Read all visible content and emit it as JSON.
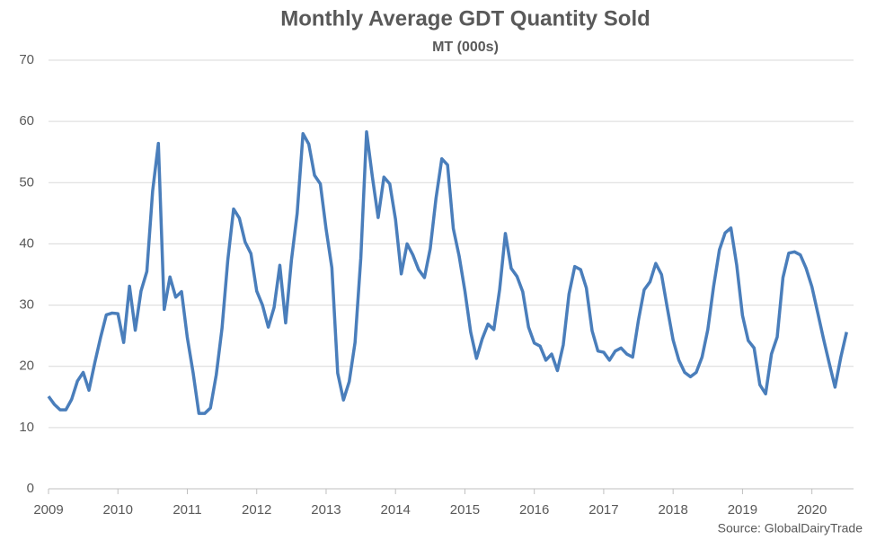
{
  "chart_data": {
    "type": "line",
    "title": "Monthly Average GDT Quantity Sold",
    "subtitle": "MT (000s)",
    "source": "Source: GlobalDairyTrade",
    "x": [
      2009,
      2009.083,
      2009.167,
      2009.25,
      2009.333,
      2009.417,
      2009.5,
      2009.583,
      2009.667,
      2009.75,
      2009.833,
      2009.917,
      2010,
      2010.083,
      2010.167,
      2010.25,
      2010.333,
      2010.417,
      2010.5,
      2010.583,
      2010.667,
      2010.75,
      2010.833,
      2010.917,
      2011,
      2011.083,
      2011.167,
      2011.25,
      2011.333,
      2011.417,
      2011.5,
      2011.583,
      2011.667,
      2011.75,
      2011.833,
      2011.917,
      2012,
      2012.083,
      2012.167,
      2012.25,
      2012.333,
      2012.417,
      2012.5,
      2012.583,
      2012.667,
      2012.75,
      2012.833,
      2012.917,
      2013,
      2013.083,
      2013.167,
      2013.25,
      2013.333,
      2013.417,
      2013.5,
      2013.583,
      2013.667,
      2013.75,
      2013.833,
      2013.917,
      2014,
      2014.083,
      2014.167,
      2014.25,
      2014.333,
      2014.417,
      2014.5,
      2014.583,
      2014.667,
      2014.75,
      2014.833,
      2014.917,
      2015,
      2015.083,
      2015.167,
      2015.25,
      2015.333,
      2015.417,
      2015.5,
      2015.583,
      2015.667,
      2015.75,
      2015.833,
      2015.917,
      2016,
      2016.083,
      2016.167,
      2016.25,
      2016.333,
      2016.417,
      2016.5,
      2016.583,
      2016.667,
      2016.75,
      2016.833,
      2016.917,
      2017,
      2017.083,
      2017.167,
      2017.25,
      2017.333,
      2017.417,
      2017.5,
      2017.583,
      2017.667,
      2017.75,
      2017.833,
      2017.917,
      2018,
      2018.083,
      2018.167,
      2018.25,
      2018.333,
      2018.417,
      2018.5,
      2018.583,
      2018.667,
      2018.75,
      2018.833,
      2018.917,
      2019,
      2019.083,
      2019.167,
      2019.25,
      2019.333,
      2019.417,
      2019.5,
      2019.583,
      2019.667,
      2019.75,
      2019.833,
      2019.917,
      2020,
      2020.083,
      2020.167,
      2020.25,
      2020.333,
      2020.417,
      2020.5
    ],
    "series": [
      {
        "name": "Quantity Sold",
        "color": "#4a7ebb",
        "values": [
          15.1,
          13.8,
          12.9,
          12.9,
          14.6,
          17.6,
          19.0,
          16.1,
          20.6,
          24.7,
          28.4,
          28.7,
          28.6,
          23.9,
          33.1,
          25.9,
          32.3,
          35.5,
          48.6,
          56.4,
          29.3,
          34.6,
          31.3,
          32.2,
          24.7,
          19.0,
          12.3,
          12.3,
          13.2,
          18.6,
          26.2,
          37.3,
          45.7,
          44.2,
          40.3,
          38.4,
          32.3,
          30.0,
          26.4,
          29.6,
          36.5,
          27.1,
          37.3,
          45.0,
          58.0,
          56.3,
          51.2,
          49.8,
          42.4,
          36.1,
          18.9,
          14.5,
          17.5,
          23.9,
          37.7,
          58.3,
          50.9,
          44.3,
          50.9,
          49.8,
          44.0,
          35.1,
          40.0,
          38.2,
          35.8,
          34.5,
          39.2,
          47.4,
          53.9,
          52.9,
          42.5,
          38.0,
          32.3,
          25.6,
          21.3,
          24.5,
          26.9,
          26.0,
          32.5,
          41.7,
          36.0,
          34.7,
          32.2,
          26.4,
          23.8,
          23.3,
          21.0,
          22.0,
          19.3,
          23.5,
          31.8,
          36.3,
          35.8,
          32.8,
          25.8,
          22.5,
          22.3,
          21.0,
          22.5,
          23.0,
          22.0,
          21.5,
          27.5,
          32.5,
          33.8,
          36.8,
          35.0,
          29.5,
          24.3,
          21.0,
          19.0,
          18.3,
          19.0,
          21.5,
          26.0,
          33.0,
          39.0,
          41.8,
          42.6,
          36.5,
          28.3,
          24.2,
          23.0,
          17.0,
          15.5,
          22.0,
          24.8,
          34.5,
          38.5,
          38.7,
          38.2,
          36.0,
          33.0,
          28.8,
          24.5,
          20.5,
          16.6,
          21.5,
          25.6
        ]
      }
    ],
    "xlim": [
      2009,
      2020.6
    ],
    "xticks": [
      2009,
      2010,
      2011,
      2012,
      2013,
      2014,
      2015,
      2016,
      2017,
      2018,
      2019,
      2020
    ],
    "ylim": [
      0,
      70
    ],
    "yticks": [
      0,
      10,
      20,
      30,
      40,
      50,
      60,
      70
    ],
    "grid": true
  }
}
